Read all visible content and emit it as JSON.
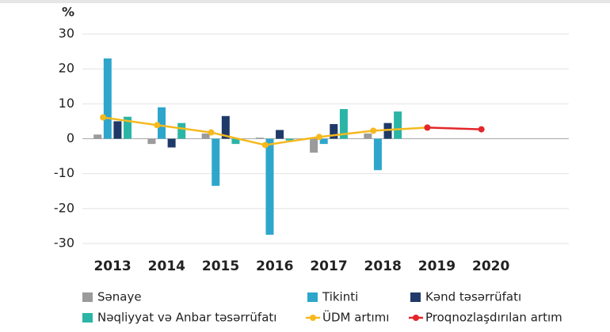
{
  "chart_data": {
    "type": "bar",
    "y_label": "%",
    "categories": [
      "2013",
      "2014",
      "2015",
      "2016",
      "2017",
      "2018",
      "2019",
      "2020"
    ],
    "series": [
      {
        "name": "Sənaye",
        "color": "#9b9b9b",
        "values": [
          1.2,
          -1.5,
          1.5,
          0.3,
          -4,
          1.5,
          null,
          null
        ]
      },
      {
        "name": "Tikinti",
        "color": "#2ea6cc",
        "values": [
          23,
          9,
          -13.5,
          -27.5,
          -1.5,
          -9,
          null,
          null
        ]
      },
      {
        "name": "Kənd təsərrüfatı",
        "color": "#1f3a68",
        "values": [
          5,
          -2.5,
          6.5,
          2.5,
          4.2,
          4.5,
          null,
          null
        ]
      },
      {
        "name": "Nəqliyyat və Anbar təsərrüfatı",
        "color": "#2bb5a6",
        "values": [
          6.3,
          4.5,
          -1.5,
          -0.5,
          8.5,
          7.8,
          null,
          null
        ]
      },
      {
        "name": "ÜDM artımı",
        "type": "line",
        "color": "#f5b91e",
        "values": [
          6.1,
          3.9,
          1.8,
          -1.8,
          0.5,
          2.3,
          3.2,
          null
        ]
      },
      {
        "name": "Proqnozlaşdırılan artım",
        "type": "line",
        "color": "#e3262b",
        "values": [
          null,
          null,
          null,
          null,
          null,
          null,
          3.2,
          2.7
        ]
      }
    ],
    "ylim": [
      -30,
      30
    ],
    "yticks": [
      -30,
      -20,
      -10,
      0,
      10,
      20,
      30
    ],
    "grid": true
  }
}
